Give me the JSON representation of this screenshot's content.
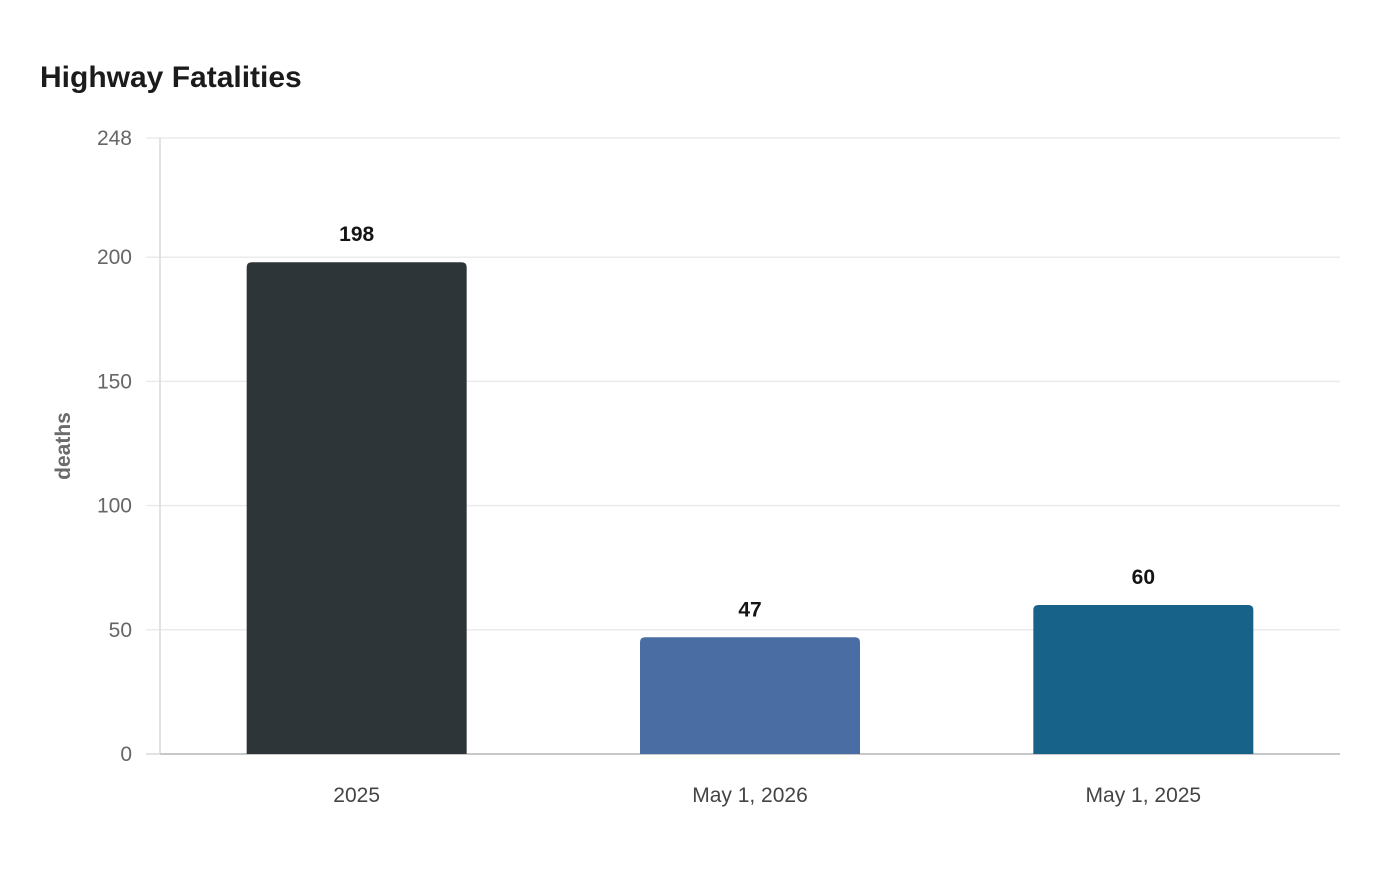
{
  "chart_data": {
    "type": "bar",
    "title": "Highway Fatalities",
    "xlabel": "",
    "ylabel": "deaths",
    "categories": [
      "2025",
      "May 1, 2026",
      "May 1, 2025"
    ],
    "values": [
      198,
      47,
      60
    ],
    "bar_colors": [
      "#2e3538",
      "#4a6ea3",
      "#176289"
    ],
    "ylim": [
      0,
      248
    ],
    "yticks": [
      0,
      50,
      100,
      150,
      200,
      248
    ],
    "grid": true,
    "legend": "none",
    "data_labels": true
  }
}
